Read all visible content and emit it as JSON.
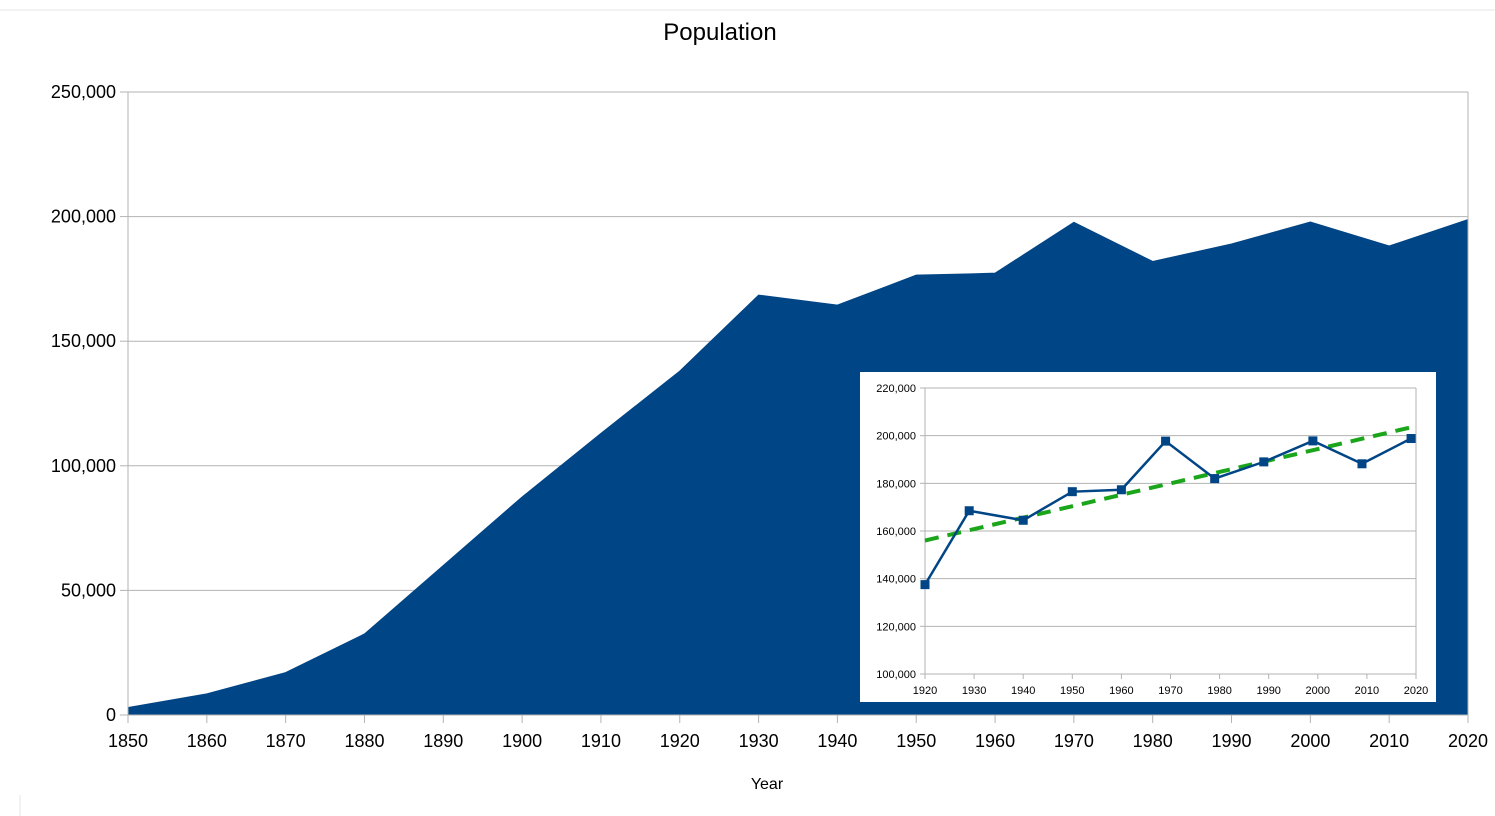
{
  "chart_data": [
    {
      "type": "area",
      "title": "Population",
      "xlabel": "Year",
      "ylabel": "",
      "xlim": [
        1850,
        2020
      ],
      "ylim": [
        0,
        250000
      ],
      "x_ticks": [
        "1850",
        "1860",
        "1870",
        "1880",
        "1890",
        "1900",
        "1910",
        "1920",
        "1930",
        "1940",
        "1950",
        "1960",
        "1970",
        "1980",
        "1990",
        "2000",
        "2010",
        "2020"
      ],
      "y_ticks": [
        "0",
        "50,000",
        "100,000",
        "150,000",
        "200,000",
        "250,000"
      ],
      "grid": true,
      "colors": {
        "fill": "#004586",
        "grid": "#b3b3b3"
      },
      "series": [
        {
          "x": [
            1850,
            1860,
            1870,
            1880,
            1890,
            1900,
            1910,
            1920,
            1930,
            1940,
            1950,
            1957,
            1960,
            1970,
            1980,
            1990,
            2000,
            2010,
            2020
          ],
          "values": [
            3000,
            8500,
            17000,
            32500,
            60000,
            87500,
            113000,
            138000,
            168500,
            164500,
            176500,
            177000,
            177300,
            197700,
            182000,
            189000,
            197800,
            188200,
            198800
          ]
        }
      ]
    },
    {
      "type": "line",
      "title": "",
      "xlabel": "",
      "ylabel": "",
      "xlim": [
        1920,
        2020
      ],
      "ylim": [
        100000,
        220000
      ],
      "x_ticks": [
        "1920",
        "1930",
        "1940",
        "1950",
        "1960",
        "1970",
        "1980",
        "1990",
        "2000",
        "2010",
        "2020"
      ],
      "y_ticks": [
        "100,000",
        "120,000",
        "140,000",
        "160,000",
        "180,000",
        "200,000",
        "220,000"
      ],
      "grid": true,
      "colors": {
        "line": "#004586",
        "trend": "#1aa51a",
        "grid": "#b3b3b3"
      },
      "series": [
        {
          "x": [
            1920,
            1929,
            1940,
            1950,
            1960,
            1969,
            1979,
            1989,
            1999,
            2009,
            2019
          ],
          "values": [
            137500,
            168500,
            164500,
            176500,
            177300,
            197700,
            182000,
            189000,
            197800,
            188200,
            198800
          ]
        }
      ],
      "trendline": {
        "x": [
          1920,
          2019
        ],
        "values": [
          156000,
          203500
        ]
      }
    }
  ]
}
